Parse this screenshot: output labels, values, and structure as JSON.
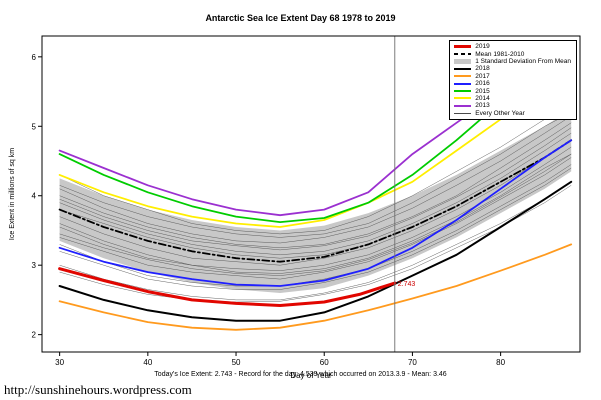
{
  "page": {
    "title": "Antarctic Sea Ice Extent Day 68 1978 to 2019",
    "caption": "Today's Ice Extent: 2.743  - Record for the day: 4.539 which occurred on 2013.3.9 - Mean: 3.46",
    "url": "http://sunshinehours.wordpress.com"
  },
  "chart_data": {
    "type": "line",
    "title": "Antarctic Sea Ice Extent Day 68 1978 to 2019",
    "xlabel": "Day of Year",
    "ylabel": "Ice Extent in millions of sq km",
    "xlim": [
      28,
      89
    ],
    "ylim": [
      1.75,
      6.3
    ],
    "xticks": [
      30,
      40,
      50,
      60,
      70,
      80
    ],
    "yticks": [
      2,
      3,
      4,
      5,
      6
    ],
    "grid": false,
    "legend_position": "top-right",
    "x": [
      30,
      35,
      40,
      45,
      50,
      55,
      60,
      65,
      70,
      75,
      80,
      85,
      88
    ],
    "vline_x": 68,
    "annotation": {
      "x": 68,
      "y": 2.743,
      "label": "2.743",
      "color": "#cc0000"
    },
    "band": {
      "name": "1 Standard Deviation From Mean",
      "color": "#c8c8c8",
      "upper": [
        4.25,
        4.0,
        3.8,
        3.65,
        3.55,
        3.5,
        3.57,
        3.75,
        4.0,
        4.3,
        4.65,
        5.0,
        5.25
      ],
      "lower": [
        3.35,
        3.1,
        2.9,
        2.75,
        2.65,
        2.6,
        2.67,
        2.85,
        3.1,
        3.4,
        3.75,
        4.1,
        4.35
      ]
    },
    "background_series": {
      "name": "Every Other Year",
      "color": "#4a4a4a",
      "width": 0.5,
      "lines": [
        [
          3.6,
          3.35,
          3.15,
          3.0,
          2.9,
          2.88,
          2.95,
          3.1,
          3.35,
          3.65,
          4.0,
          4.4,
          4.6
        ],
        [
          3.9,
          3.65,
          3.45,
          3.3,
          3.2,
          3.15,
          3.2,
          3.35,
          3.6,
          3.9,
          4.25,
          4.65,
          4.9
        ],
        [
          3.4,
          3.2,
          3.0,
          2.9,
          2.85,
          2.8,
          2.9,
          3.05,
          3.3,
          3.6,
          3.95,
          4.3,
          4.55
        ],
        [
          4.0,
          3.75,
          3.55,
          3.4,
          3.3,
          3.25,
          3.3,
          3.45,
          3.7,
          4.0,
          4.4,
          4.8,
          5.05
        ],
        [
          3.3,
          3.05,
          2.85,
          2.75,
          2.7,
          2.7,
          2.8,
          2.95,
          3.2,
          3.5,
          3.85,
          4.2,
          4.45
        ],
        [
          4.15,
          3.9,
          3.7,
          3.55,
          3.45,
          3.4,
          3.45,
          3.6,
          3.9,
          4.25,
          4.6,
          5.0,
          5.2
        ],
        [
          3.55,
          3.3,
          3.1,
          3.0,
          2.95,
          2.92,
          3.0,
          3.15,
          3.4,
          3.7,
          4.05,
          4.45,
          4.7
        ],
        [
          3.8,
          3.6,
          3.4,
          3.25,
          3.15,
          3.1,
          3.15,
          3.3,
          3.55,
          3.85,
          4.2,
          4.55,
          4.8
        ],
        [
          3.2,
          3.0,
          2.8,
          2.7,
          2.65,
          2.65,
          2.75,
          2.9,
          3.15,
          3.45,
          3.8,
          4.15,
          4.4
        ],
        [
          4.3,
          4.0,
          3.8,
          3.6,
          3.5,
          3.45,
          3.5,
          3.7,
          4.0,
          4.35,
          4.7,
          5.1,
          5.35
        ],
        [
          3.0,
          2.8,
          2.65,
          2.55,
          2.5,
          2.5,
          2.6,
          2.75,
          3.0,
          3.3,
          3.6,
          3.95,
          4.2
        ],
        [
          3.7,
          3.45,
          3.25,
          3.1,
          3.05,
          3.0,
          3.1,
          3.25,
          3.5,
          3.8,
          4.15,
          4.55,
          4.8
        ],
        [
          3.45,
          3.25,
          3.08,
          2.95,
          2.88,
          2.85,
          2.92,
          3.08,
          3.32,
          3.62,
          3.98,
          4.35,
          4.6
        ],
        [
          4.1,
          3.82,
          3.6,
          3.45,
          3.35,
          3.32,
          3.4,
          3.55,
          3.82,
          4.15,
          4.5,
          4.9,
          5.15
        ],
        [
          2.9,
          2.72,
          2.58,
          2.5,
          2.47,
          2.48,
          2.58,
          2.72,
          2.95,
          3.25,
          3.55,
          3.9,
          4.15
        ],
        [
          3.95,
          3.7,
          3.5,
          3.35,
          3.28,
          3.22,
          3.28,
          3.42,
          3.68,
          3.98,
          4.32,
          4.72,
          4.98
        ]
      ]
    },
    "series": [
      {
        "name": "Mean 1981-2010",
        "color": "#000000",
        "width": 1.8,
        "dash": "7,3,2,3",
        "values": [
          3.8,
          3.55,
          3.35,
          3.2,
          3.1,
          3.05,
          3.12,
          3.3,
          3.55,
          3.85,
          4.2,
          4.55,
          4.8
        ]
      },
      {
        "name": "2013",
        "color": "#9b30d0",
        "width": 1.8,
        "values": [
          4.65,
          4.4,
          4.15,
          3.95,
          3.8,
          3.72,
          3.8,
          4.05,
          4.6,
          5.05,
          5.5,
          5.95,
          6.2
        ]
      },
      {
        "name": "2014",
        "color": "#ffee00",
        "width": 1.8,
        "values": [
          4.3,
          4.05,
          3.85,
          3.7,
          3.6,
          3.55,
          3.65,
          3.9,
          4.2,
          4.65,
          5.1,
          5.55,
          5.85
        ]
      },
      {
        "name": "2015",
        "color": "#00cc00",
        "width": 1.8,
        "values": [
          4.6,
          4.3,
          4.05,
          3.85,
          3.7,
          3.62,
          3.68,
          3.9,
          4.3,
          4.8,
          5.35,
          5.85,
          6.1
        ]
      },
      {
        "name": "2016",
        "color": "#1f1fff",
        "width": 1.8,
        "values": [
          3.25,
          3.05,
          2.9,
          2.8,
          2.72,
          2.7,
          2.78,
          2.95,
          3.25,
          3.65,
          4.1,
          4.55,
          4.8
        ]
      },
      {
        "name": "2017",
        "color": "#ff9a1e",
        "width": 1.8,
        "values": [
          2.48,
          2.32,
          2.18,
          2.1,
          2.07,
          2.1,
          2.2,
          2.35,
          2.52,
          2.7,
          2.92,
          3.15,
          3.3
        ]
      },
      {
        "name": "2018",
        "color": "#000000",
        "width": 2,
        "values": [
          2.7,
          2.5,
          2.35,
          2.25,
          2.2,
          2.2,
          2.32,
          2.55,
          2.85,
          3.15,
          3.55,
          3.95,
          4.2
        ]
      },
      {
        "name": "2019",
        "color": "#e10600",
        "width": 3,
        "x": [
          30,
          35,
          40,
          45,
          50,
          55,
          60,
          64,
          68
        ],
        "values": [
          2.95,
          2.78,
          2.62,
          2.5,
          2.45,
          2.42,
          2.47,
          2.58,
          2.743
        ]
      }
    ],
    "legend": [
      {
        "label": "2019",
        "color": "#e10600",
        "height": 3,
        "dash": false
      },
      {
        "label": "Mean 1981-2010",
        "color": "#000000",
        "height": 2,
        "dash": true
      },
      {
        "label": "1 Standard Deviation From Mean",
        "color": "#c8c8c8",
        "height": 5,
        "dash": false
      },
      {
        "label": "2018",
        "color": "#000000",
        "height": 2,
        "dash": false
      },
      {
        "label": "2017",
        "color": "#ff9a1e",
        "height": 2,
        "dash": false
      },
      {
        "label": "2016",
        "color": "#1f1fff",
        "height": 2,
        "dash": false
      },
      {
        "label": "2015",
        "color": "#00cc00",
        "height": 2,
        "dash": false
      },
      {
        "label": "2014",
        "color": "#ffee00",
        "height": 2,
        "dash": false
      },
      {
        "label": "2013",
        "color": "#9b30d0",
        "height": 2,
        "dash": false
      },
      {
        "label": "Every Other Year",
        "color": "#4a4a4a",
        "height": 1,
        "dash": false
      }
    ]
  }
}
